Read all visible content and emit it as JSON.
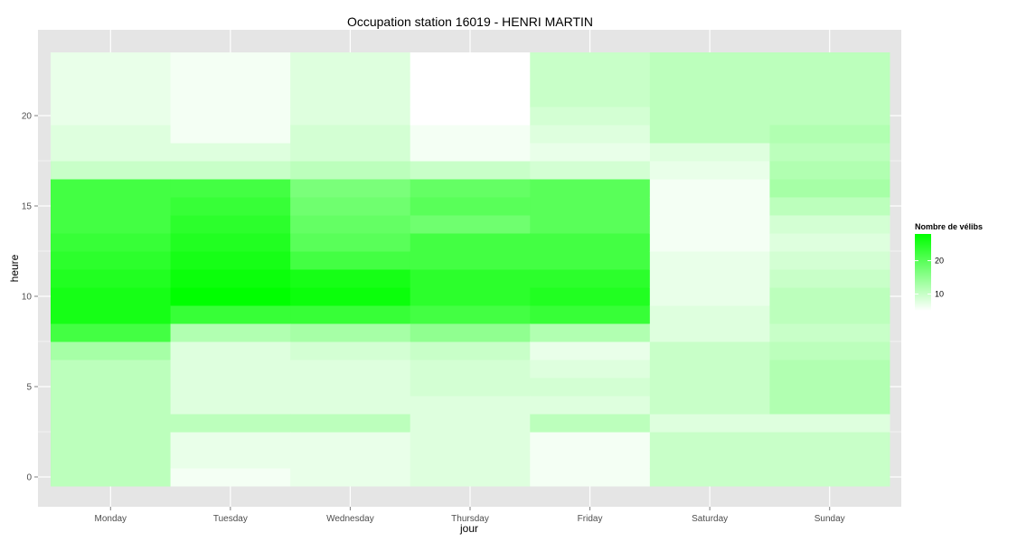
{
  "chart_data": {
    "type": "heatmap",
    "title": "Occupation station 16019 - HENRI MARTIN",
    "xlabel": "jour",
    "ylabel": "heure",
    "x_categories": [
      "Monday",
      "Tuesday",
      "Wednesday",
      "Thursday",
      "Friday",
      "Saturday",
      "Sunday"
    ],
    "y_ticks": [
      0,
      5,
      10,
      15,
      20
    ],
    "y_range": [
      0,
      23
    ],
    "grid": true,
    "legend": {
      "title": "Nombre de vélibs",
      "position": "right",
      "ticks": [
        10,
        20
      ],
      "min": 5,
      "max": 28,
      "low_color": "#ffffff",
      "high_color": "#00ff00"
    },
    "colors": {
      "panel": "#e5e5e5",
      "grid": "#ffffff"
    },
    "values_by_day": [
      [
        11,
        11,
        11,
        11,
        11,
        11,
        11,
        13,
        22,
        26,
        26,
        25,
        24,
        23,
        22,
        22,
        22,
        10,
        8,
        8,
        7,
        7,
        7,
        7
      ],
      [
        6,
        7,
        7,
        11,
        8,
        8,
        8,
        8,
        12,
        23,
        28,
        27,
        26,
        25,
        24,
        23,
        22,
        10,
        8,
        6,
        6,
        6,
        6,
        6
      ],
      [
        7,
        7,
        7,
        11,
        8,
        8,
        8,
        9,
        13,
        23,
        27,
        26,
        22,
        20,
        19,
        18,
        17,
        11,
        9,
        9,
        8,
        8,
        8,
        8
      ],
      [
        8,
        8,
        8,
        8,
        8,
        9,
        9,
        10,
        15,
        22,
        24,
        24,
        22,
        22,
        18,
        20,
        19,
        10,
        6,
        6,
        5,
        5,
        5,
        5
      ],
      [
        6,
        6,
        6,
        11,
        8,
        9,
        8,
        7,
        12,
        23,
        25,
        24,
        22,
        22,
        20,
        20,
        20,
        9,
        7,
        8,
        9,
        10,
        10,
        10
      ],
      [
        10,
        10,
        10,
        8,
        10,
        10,
        10,
        10,
        8,
        8,
        7,
        7,
        7,
        6,
        6,
        6,
        6,
        7,
        8,
        11,
        11,
        11,
        11,
        11
      ],
      [
        10,
        10,
        10,
        8,
        12,
        12,
        12,
        11,
        10,
        11,
        11,
        10,
        9,
        8,
        9,
        11,
        13,
        12,
        11,
        12,
        11,
        11,
        11,
        11
      ]
    ]
  }
}
